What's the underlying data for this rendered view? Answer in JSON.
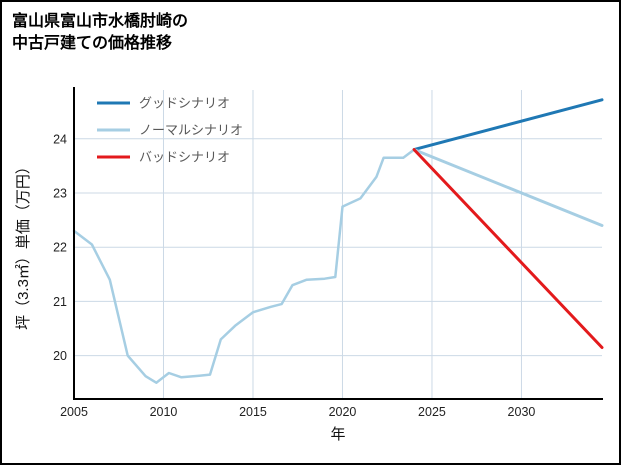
{
  "header": {
    "title_line1": "富山県富山市水橋肘崎の",
    "title_line2": "中古戸建ての価格推移"
  },
  "chart_data": {
    "type": "line",
    "title": "富山県富山市水橋肘崎の中古戸建ての価格推移",
    "xlabel": "年",
    "ylabel": "坪（3.3㎡）単価（万円）",
    "xlim": [
      2005,
      2034.5
    ],
    "ylim": [
      19.2,
      24.9
    ],
    "xticks": [
      2005,
      2010,
      2015,
      2020,
      2025,
      2030
    ],
    "yticks": [
      20,
      21,
      22,
      23,
      24
    ],
    "grid": true,
    "grid_color": "#ccd9e6",
    "axis_color": "#000000",
    "legend_position": "upper-left-inside",
    "legend_text_color": "#595959",
    "series": [
      {
        "id": "history",
        "name": "",
        "in_legend": false,
        "color": "#a6cee3",
        "line_width": 2.5,
        "x": [
          2005,
          2006,
          2007,
          2008,
          2009,
          2009.6,
          2010.3,
          2011,
          2012,
          2012.6,
          2013.2,
          2014,
          2015,
          2016,
          2016.6,
          2017.2,
          2018,
          2019,
          2019.6,
          2020,
          2021,
          2021.9,
          2022.3,
          2023.4,
          2024
        ],
        "values": [
          22.3,
          22.05,
          21.4,
          20.0,
          19.62,
          19.5,
          19.68,
          19.6,
          19.63,
          19.65,
          20.3,
          20.55,
          20.8,
          20.9,
          20.95,
          21.3,
          21.4,
          21.42,
          21.45,
          22.75,
          22.9,
          23.3,
          23.65,
          23.65,
          23.8
        ]
      },
      {
        "id": "good",
        "name": "グッドシナリオ",
        "in_legend": true,
        "color": "#1f78b4",
        "line_width": 3,
        "x": [
          2024,
          2034.5
        ],
        "values": [
          23.8,
          24.72
        ]
      },
      {
        "id": "normal",
        "name": "ノーマルシナリオ",
        "in_legend": true,
        "color": "#a6cee3",
        "line_width": 3,
        "x": [
          2024,
          2034.5
        ],
        "values": [
          23.8,
          22.4
        ]
      },
      {
        "id": "bad",
        "name": "バッドシナリオ",
        "in_legend": true,
        "color": "#e31a1c",
        "line_width": 3,
        "x": [
          2024,
          2034.5
        ],
        "values": [
          23.8,
          20.15
        ]
      }
    ]
  }
}
